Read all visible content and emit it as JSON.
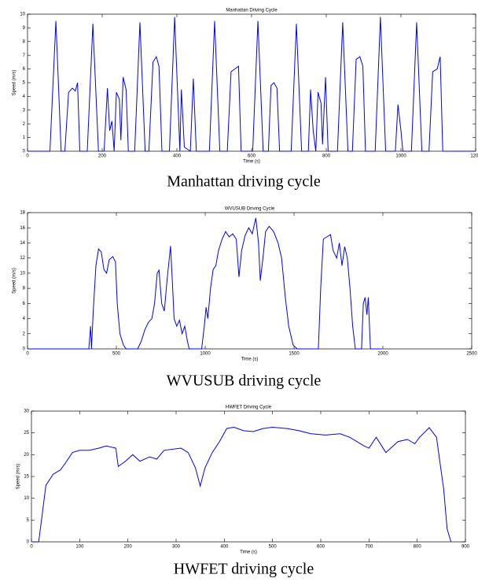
{
  "chart_data": [
    {
      "type": "line",
      "title": "Manhattan Driving Cycle",
      "xlabel": "Time (s)",
      "ylabel": "Speed (m/s)",
      "caption": "Manhattan driving cycle",
      "xlim": [
        0,
        1200
      ],
      "xticks": [
        0,
        200,
        400,
        600,
        800,
        1000,
        1200
      ],
      "ylim": [
        0,
        10
      ],
      "yticks": [
        0,
        1,
        2,
        3,
        4,
        5,
        6,
        7,
        8,
        9,
        10
      ],
      "x": [
        0,
        60,
        76,
        90,
        100,
        110,
        120,
        128,
        134,
        140,
        160,
        175,
        190,
        205,
        214,
        220,
        226,
        232,
        238,
        246,
        250,
        256,
        264,
        270,
        287,
        301,
        315,
        325,
        336,
        345,
        352,
        360,
        380,
        394,
        408,
        412,
        420,
        436,
        444,
        452,
        487,
        501,
        515,
        535,
        545,
        555,
        565,
        572,
        603,
        617,
        631,
        645,
        652,
        660,
        668,
        675,
        706,
        720,
        734,
        752,
        758,
        765,
        772,
        778,
        786,
        790,
        798,
        805,
        830,
        844,
        858,
        870,
        880,
        890,
        898,
        905,
        931,
        945,
        959,
        985,
        992,
        1000,
        1005,
        1028,
        1042,
        1056,
        1075,
        1085,
        1097,
        1105,
        1112,
        1200
      ],
      "series": [
        {
          "color": "#0000ff",
          "values": [
            0,
            0,
            9.5,
            0,
            0,
            4.3,
            4.6,
            4.4,
            5.0,
            0,
            0,
            9.3,
            0,
            0,
            4.6,
            1.5,
            2.2,
            0,
            4.3,
            3.8,
            0.8,
            5.4,
            4.5,
            0,
            0,
            9.4,
            0,
            0,
            6.5,
            6.9,
            6.2,
            0,
            0,
            9.8,
            0,
            4.5,
            0.3,
            0,
            5.3,
            0,
            0,
            9.5,
            0,
            0,
            5.8,
            6.0,
            6.2,
            0,
            0,
            9.5,
            0,
            0,
            4.8,
            5.0,
            4.6,
            0,
            0,
            9.3,
            0,
            0,
            4.5,
            1.5,
            0,
            4.3,
            3.5,
            0.5,
            5.4,
            0,
            0,
            9.4,
            0,
            0,
            6.7,
            6.9,
            6.2,
            0,
            0,
            9.8,
            0,
            0,
            3.4,
            1.5,
            0,
            0,
            9.4,
            0,
            0,
            5.8,
            6.0,
            6.9,
            0,
            0
          ]
        }
      ]
    },
    {
      "type": "line",
      "title": "WVUSUB Driving Cycle",
      "xlabel": "Time (s)",
      "ylabel": "Speed (m/s)",
      "caption": "WVUSUB driving cycle",
      "xlim": [
        0,
        2500
      ],
      "xticks": [
        0,
        500,
        1000,
        1500,
        2000,
        2500
      ],
      "ylim": [
        0,
        18
      ],
      "yticks": [
        0,
        2,
        4,
        6,
        8,
        10,
        12,
        14,
        16,
        18
      ],
      "x": [
        0,
        345,
        355,
        360,
        370,
        385,
        400,
        415,
        430,
        445,
        460,
        480,
        495,
        505,
        520,
        540,
        555,
        620,
        640,
        660,
        680,
        700,
        715,
        730,
        740,
        755,
        770,
        785,
        805,
        815,
        825,
        840,
        855,
        870,
        885,
        900,
        910,
        980,
        995,
        1005,
        1015,
        1030,
        1045,
        1060,
        1075,
        1095,
        1115,
        1135,
        1155,
        1175,
        1190,
        1205,
        1225,
        1245,
        1265,
        1285,
        1300,
        1310,
        1325,
        1340,
        1360,
        1385,
        1410,
        1430,
        1450,
        1470,
        1495,
        1518,
        1637,
        1650,
        1665,
        1685,
        1705,
        1720,
        1740,
        1755,
        1770,
        1785,
        1800,
        1815,
        1830,
        1845,
        1880,
        1890,
        1900,
        1910,
        1918,
        1930,
        1990
      ],
      "series": [
        {
          "color": "#0000ff",
          "values": [
            0,
            0,
            3,
            0,
            5,
            11,
            13.2,
            12.8,
            10.5,
            10,
            11.8,
            12.2,
            11.5,
            6,
            2,
            0.5,
            0,
            0,
            1,
            2.5,
            3.5,
            4,
            6,
            10,
            10.4,
            6,
            5,
            9,
            13.6,
            9,
            4,
            3,
            3.8,
            2,
            3,
            1,
            0,
            0,
            3,
            5.5,
            4,
            8,
            10.5,
            11,
            13,
            14.5,
            15.5,
            14.8,
            15.2,
            14.5,
            9.5,
            13,
            15,
            16,
            15.2,
            17.3,
            14,
            9,
            12,
            15.5,
            16.2,
            15.5,
            14,
            12,
            7,
            3,
            0.5,
            0,
            0,
            8,
            14.5,
            14.8,
            15.1,
            13,
            12,
            14,
            11,
            13.5,
            12,
            8,
            3,
            0,
            0,
            6,
            6.8,
            4.5,
            6.8,
            0,
            0
          ]
        }
      ]
    },
    {
      "type": "line",
      "title": "HWFET Driving Cycle",
      "xlabel": "Time (s)",
      "ylabel": "Speed (m/s)",
      "caption": "HWFET driving cycle",
      "xlim": [
        0,
        900
      ],
      "xticks": [
        0,
        100,
        200,
        300,
        400,
        500,
        600,
        700,
        800,
        900
      ],
      "ylim": [
        0,
        30
      ],
      "yticks": [
        0,
        5,
        10,
        15,
        20,
        25,
        30
      ],
      "x": [
        0,
        15,
        22,
        30,
        45,
        60,
        70,
        85,
        100,
        120,
        140,
        155,
        175,
        180,
        195,
        210,
        225,
        245,
        260,
        275,
        310,
        325,
        340,
        350,
        360,
        375,
        390,
        405,
        420,
        440,
        460,
        480,
        500,
        530,
        555,
        580,
        610,
        640,
        660,
        690,
        700,
        715,
        735,
        760,
        780,
        795,
        805,
        825,
        840,
        855,
        862,
        870
      ],
      "series": [
        {
          "color": "#0000ff",
          "values": [
            0,
            0,
            6,
            13,
            15.5,
            16.5,
            18,
            20.5,
            21,
            21,
            21.5,
            22,
            21.5,
            17.3,
            18.5,
            20,
            18.5,
            19.5,
            19,
            21,
            21.5,
            20.5,
            17,
            12.8,
            17,
            20.5,
            23,
            26,
            26.3,
            25.5,
            25.3,
            26,
            26.3,
            26,
            25.5,
            24.8,
            24.5,
            24.8,
            24,
            22,
            21.5,
            24,
            20.5,
            23,
            23.5,
            22.5,
            24,
            26.2,
            24,
            12,
            3,
            0
          ]
        }
      ]
    }
  ]
}
